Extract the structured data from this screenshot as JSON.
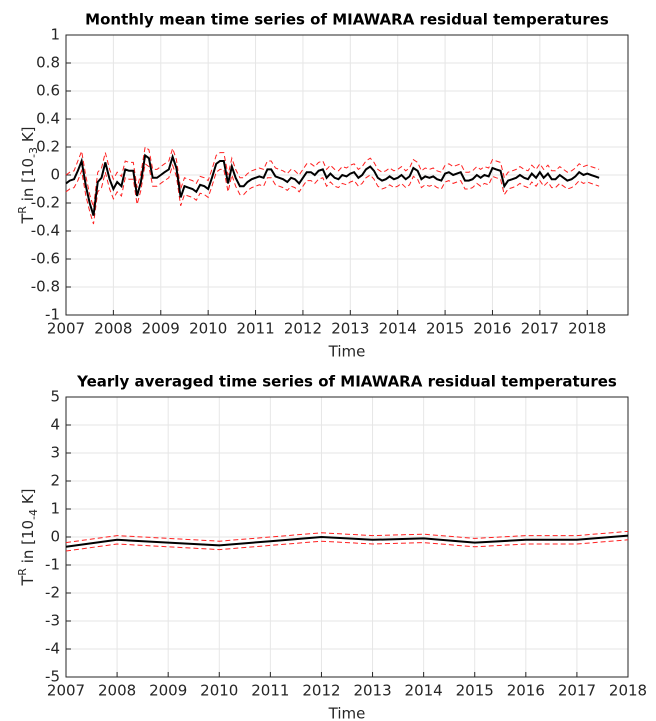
{
  "chart_data": [
    {
      "type": "line",
      "title": "Monthly mean time series of MIAWARA residual temperatures",
      "xlabel": "Time",
      "ylabel": [
        "T",
        "R",
        " in [10",
        "-3",
        " K]"
      ],
      "xlim": [
        2007,
        2018.86
      ],
      "xticks": [
        2007,
        2008,
        2009,
        2010,
        2011,
        2012,
        2013,
        2014,
        2015,
        2016,
        2017,
        2018
      ],
      "ylim": [
        -1,
        1
      ],
      "yticks": [
        -1,
        -0.8,
        -0.6,
        -0.4,
        -0.2,
        0,
        0.2,
        0.4,
        0.6,
        0.8,
        1
      ],
      "grid": true,
      "x": [
        2007,
        2007.08,
        2007.17,
        2007.25,
        2007.33,
        2007.42,
        2007.5,
        2007.58,
        2007.67,
        2007.75,
        2007.83,
        2007.92,
        2008,
        2008.08,
        2008.17,
        2008.25,
        2008.33,
        2008.42,
        2008.5,
        2008.58,
        2008.67,
        2008.75,
        2008.83,
        2008.92,
        2009,
        2009.08,
        2009.17,
        2009.25,
        2009.33,
        2009.42,
        2009.5,
        2009.58,
        2009.67,
        2009.75,
        2009.83,
        2009.92,
        2010,
        2010.08,
        2010.17,
        2010.25,
        2010.33,
        2010.42,
        2010.5,
        2010.58,
        2010.67,
        2010.75,
        2010.83,
        2010.92,
        2011,
        2011.08,
        2011.17,
        2011.25,
        2011.33,
        2011.42,
        2011.5,
        2011.58,
        2011.67,
        2011.75,
        2011.83,
        2011.92,
        2012,
        2012.08,
        2012.17,
        2012.25,
        2012.33,
        2012.42,
        2012.5,
        2012.58,
        2012.67,
        2012.75,
        2012.83,
        2012.92,
        2013,
        2013.08,
        2013.17,
        2013.25,
        2013.33,
        2013.42,
        2013.5,
        2013.58,
        2013.67,
        2013.75,
        2013.83,
        2013.92,
        2014,
        2014.08,
        2014.17,
        2014.25,
        2014.33,
        2014.42,
        2014.5,
        2014.58,
        2014.67,
        2014.75,
        2014.83,
        2014.92,
        2015,
        2015.08,
        2015.17,
        2015.25,
        2015.33,
        2015.42,
        2015.5,
        2015.58,
        2015.67,
        2015.75,
        2015.83,
        2015.92,
        2016,
        2016.08,
        2016.17,
        2016.25,
        2016.33,
        2016.42,
        2016.5,
        2016.58,
        2016.67,
        2016.75,
        2016.83,
        2016.92,
        2017,
        2017.08,
        2017.17,
        2017.25,
        2017.33,
        2017.42,
        2017.5,
        2017.58,
        2017.67,
        2017.75,
        2017.83,
        2017.92,
        2018,
        2018.08,
        2018.17,
        2018.25
      ],
      "series": [
        {
          "color": "#000000",
          "error_color": "#ff2020",
          "values": [
            -0.06,
            -0.04,
            -0.03,
            0.03,
            0.1,
            -0.08,
            -0.2,
            -0.29,
            -0.05,
            -0.02,
            0.09,
            -0.03,
            -0.1,
            -0.05,
            -0.08,
            0.04,
            0.03,
            0.03,
            -0.15,
            -0.05,
            0.14,
            0.12,
            -0.02,
            -0.02,
            0.0,
            0.02,
            0.04,
            0.13,
            0.05,
            -0.16,
            -0.08,
            -0.09,
            -0.1,
            -0.12,
            -0.07,
            -0.08,
            -0.1,
            -0.02,
            0.08,
            0.1,
            0.1,
            -0.06,
            0.06,
            -0.02,
            -0.08,
            -0.08,
            -0.05,
            -0.03,
            -0.02,
            -0.01,
            -0.02,
            0.04,
            0.04,
            -0.01,
            -0.02,
            -0.03,
            -0.05,
            -0.02,
            -0.03,
            -0.06,
            -0.02,
            0.02,
            0.02,
            0.0,
            0.03,
            0.04,
            -0.02,
            0.01,
            -0.02,
            -0.03,
            0.0,
            -0.01,
            0.01,
            0.02,
            -0.02,
            0.0,
            0.04,
            0.06,
            0.03,
            -0.02,
            -0.04,
            -0.03,
            -0.01,
            -0.03,
            -0.02,
            0.0,
            -0.03,
            -0.01,
            0.05,
            0.03,
            -0.03,
            -0.01,
            -0.02,
            -0.01,
            -0.03,
            -0.04,
            0.01,
            0.02,
            0.0,
            0.01,
            0.02,
            -0.04,
            -0.04,
            -0.03,
            0.0,
            -0.02,
            0.0,
            -0.01,
            0.05,
            0.04,
            0.03,
            -0.08,
            -0.04,
            -0.03,
            -0.02,
            0.0,
            -0.02,
            -0.03,
            0.01,
            -0.02,
            0.02,
            -0.02,
            0.01,
            -0.03,
            -0.03,
            0.0,
            -0.02,
            -0.04,
            -0.03,
            -0.01,
            0.02,
            0.0,
            0.01,
            0.0,
            -0.01,
            -0.02
          ],
          "errors": [
            0.06,
            0.06,
            0.06,
            0.07,
            0.07,
            0.07,
            0.06,
            0.06,
            0.07,
            0.07,
            0.07,
            0.07,
            0.07,
            0.07,
            0.07,
            0.06,
            0.06,
            0.06,
            0.06,
            0.06,
            0.06,
            0.06,
            0.06,
            0.06,
            0.06,
            0.06,
            0.06,
            0.06,
            0.06,
            0.06,
            0.06,
            0.06,
            0.06,
            0.06,
            0.06,
            0.06,
            0.06,
            0.06,
            0.06,
            0.06,
            0.06,
            0.06,
            0.06,
            0.06,
            0.06,
            0.06,
            0.06,
            0.06,
            0.06,
            0.06,
            0.06,
            0.06,
            0.06,
            0.06,
            0.06,
            0.06,
            0.06,
            0.06,
            0.06,
            0.06,
            0.06,
            0.06,
            0.06,
            0.06,
            0.06,
            0.06,
            0.06,
            0.06,
            0.06,
            0.06,
            0.06,
            0.06,
            0.06,
            0.06,
            0.06,
            0.06,
            0.06,
            0.06,
            0.06,
            0.06,
            0.06,
            0.06,
            0.06,
            0.06,
            0.06,
            0.06,
            0.06,
            0.06,
            0.06,
            0.06,
            0.06,
            0.06,
            0.06,
            0.06,
            0.06,
            0.06,
            0.06,
            0.06,
            0.06,
            0.06,
            0.06,
            0.06,
            0.06,
            0.06,
            0.06,
            0.06,
            0.06,
            0.06,
            0.06,
            0.06,
            0.06,
            0.06,
            0.06,
            0.06,
            0.06,
            0.06,
            0.06,
            0.06,
            0.06,
            0.06,
            0.06,
            0.06,
            0.06,
            0.06,
            0.06,
            0.06,
            0.06,
            0.06,
            0.06,
            0.06,
            0.06,
            0.06,
            0.06,
            0.06,
            0.06,
            0.06
          ]
        }
      ]
    },
    {
      "type": "line",
      "title": "Yearly averaged time series of MIAWARA residual temperatures",
      "xlabel": "Time",
      "ylabel": [
        "T",
        "R",
        " in [10",
        "-4",
        " K]"
      ],
      "xlim": [
        2007,
        2018
      ],
      "xticks": [
        2007,
        2008,
        2009,
        2010,
        2011,
        2012,
        2013,
        2014,
        2015,
        2016,
        2017,
        2018
      ],
      "ylim": [
        -5,
        5
      ],
      "yticks": [
        -5,
        -4,
        -3,
        -2,
        -1,
        0,
        1,
        2,
        3,
        4,
        5
      ],
      "grid": true,
      "x": [
        2007,
        2008,
        2009,
        2010,
        2011,
        2012,
        2013,
        2014,
        2015,
        2016,
        2017,
        2018
      ],
      "series": [
        {
          "color": "#000000",
          "error_color": "#ff2020",
          "values": [
            -0.35,
            -0.1,
            -0.2,
            -0.3,
            -0.15,
            0.0,
            -0.1,
            -0.05,
            -0.2,
            -0.1,
            -0.1,
            0.05
          ],
          "errors": [
            0.15,
            0.15,
            0.15,
            0.15,
            0.15,
            0.15,
            0.15,
            0.15,
            0.15,
            0.15,
            0.15,
            0.15
          ]
        }
      ]
    }
  ]
}
